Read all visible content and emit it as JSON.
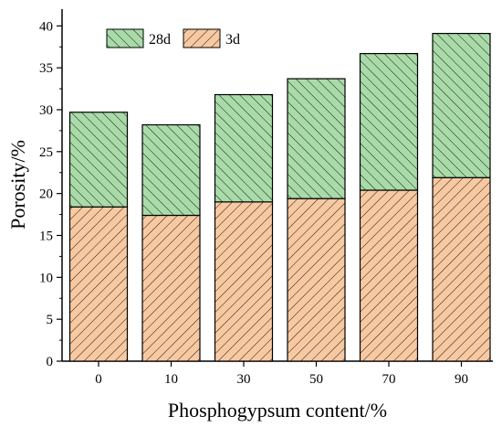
{
  "chart_data": {
    "type": "bar",
    "stacked": true,
    "categories": [
      "0",
      "10",
      "30",
      "50",
      "70",
      "90"
    ],
    "series": [
      {
        "name": "3d",
        "values": [
          18.4,
          17.4,
          19.0,
          19.4,
          20.4,
          21.9
        ],
        "color": "#f8c9a1",
        "hatch_color": "#1a1a1a"
      },
      {
        "name": "28d",
        "values": [
          11.3,
          10.8,
          12.8,
          14.3,
          16.3,
          17.2
        ],
        "color": "#a9dba9",
        "hatch_color": "#1a1a1a"
      }
    ],
    "xlabel": "Phosphogypsum content/%",
    "ylabel": "Porosity/%",
    "ylim": [
      0,
      42
    ],
    "yticks": [
      0,
      5,
      10,
      15,
      20,
      25,
      30,
      35,
      40
    ],
    "legend": {
      "placement": "top-left",
      "order": [
        "28d",
        "3d"
      ]
    },
    "grid": false
  }
}
